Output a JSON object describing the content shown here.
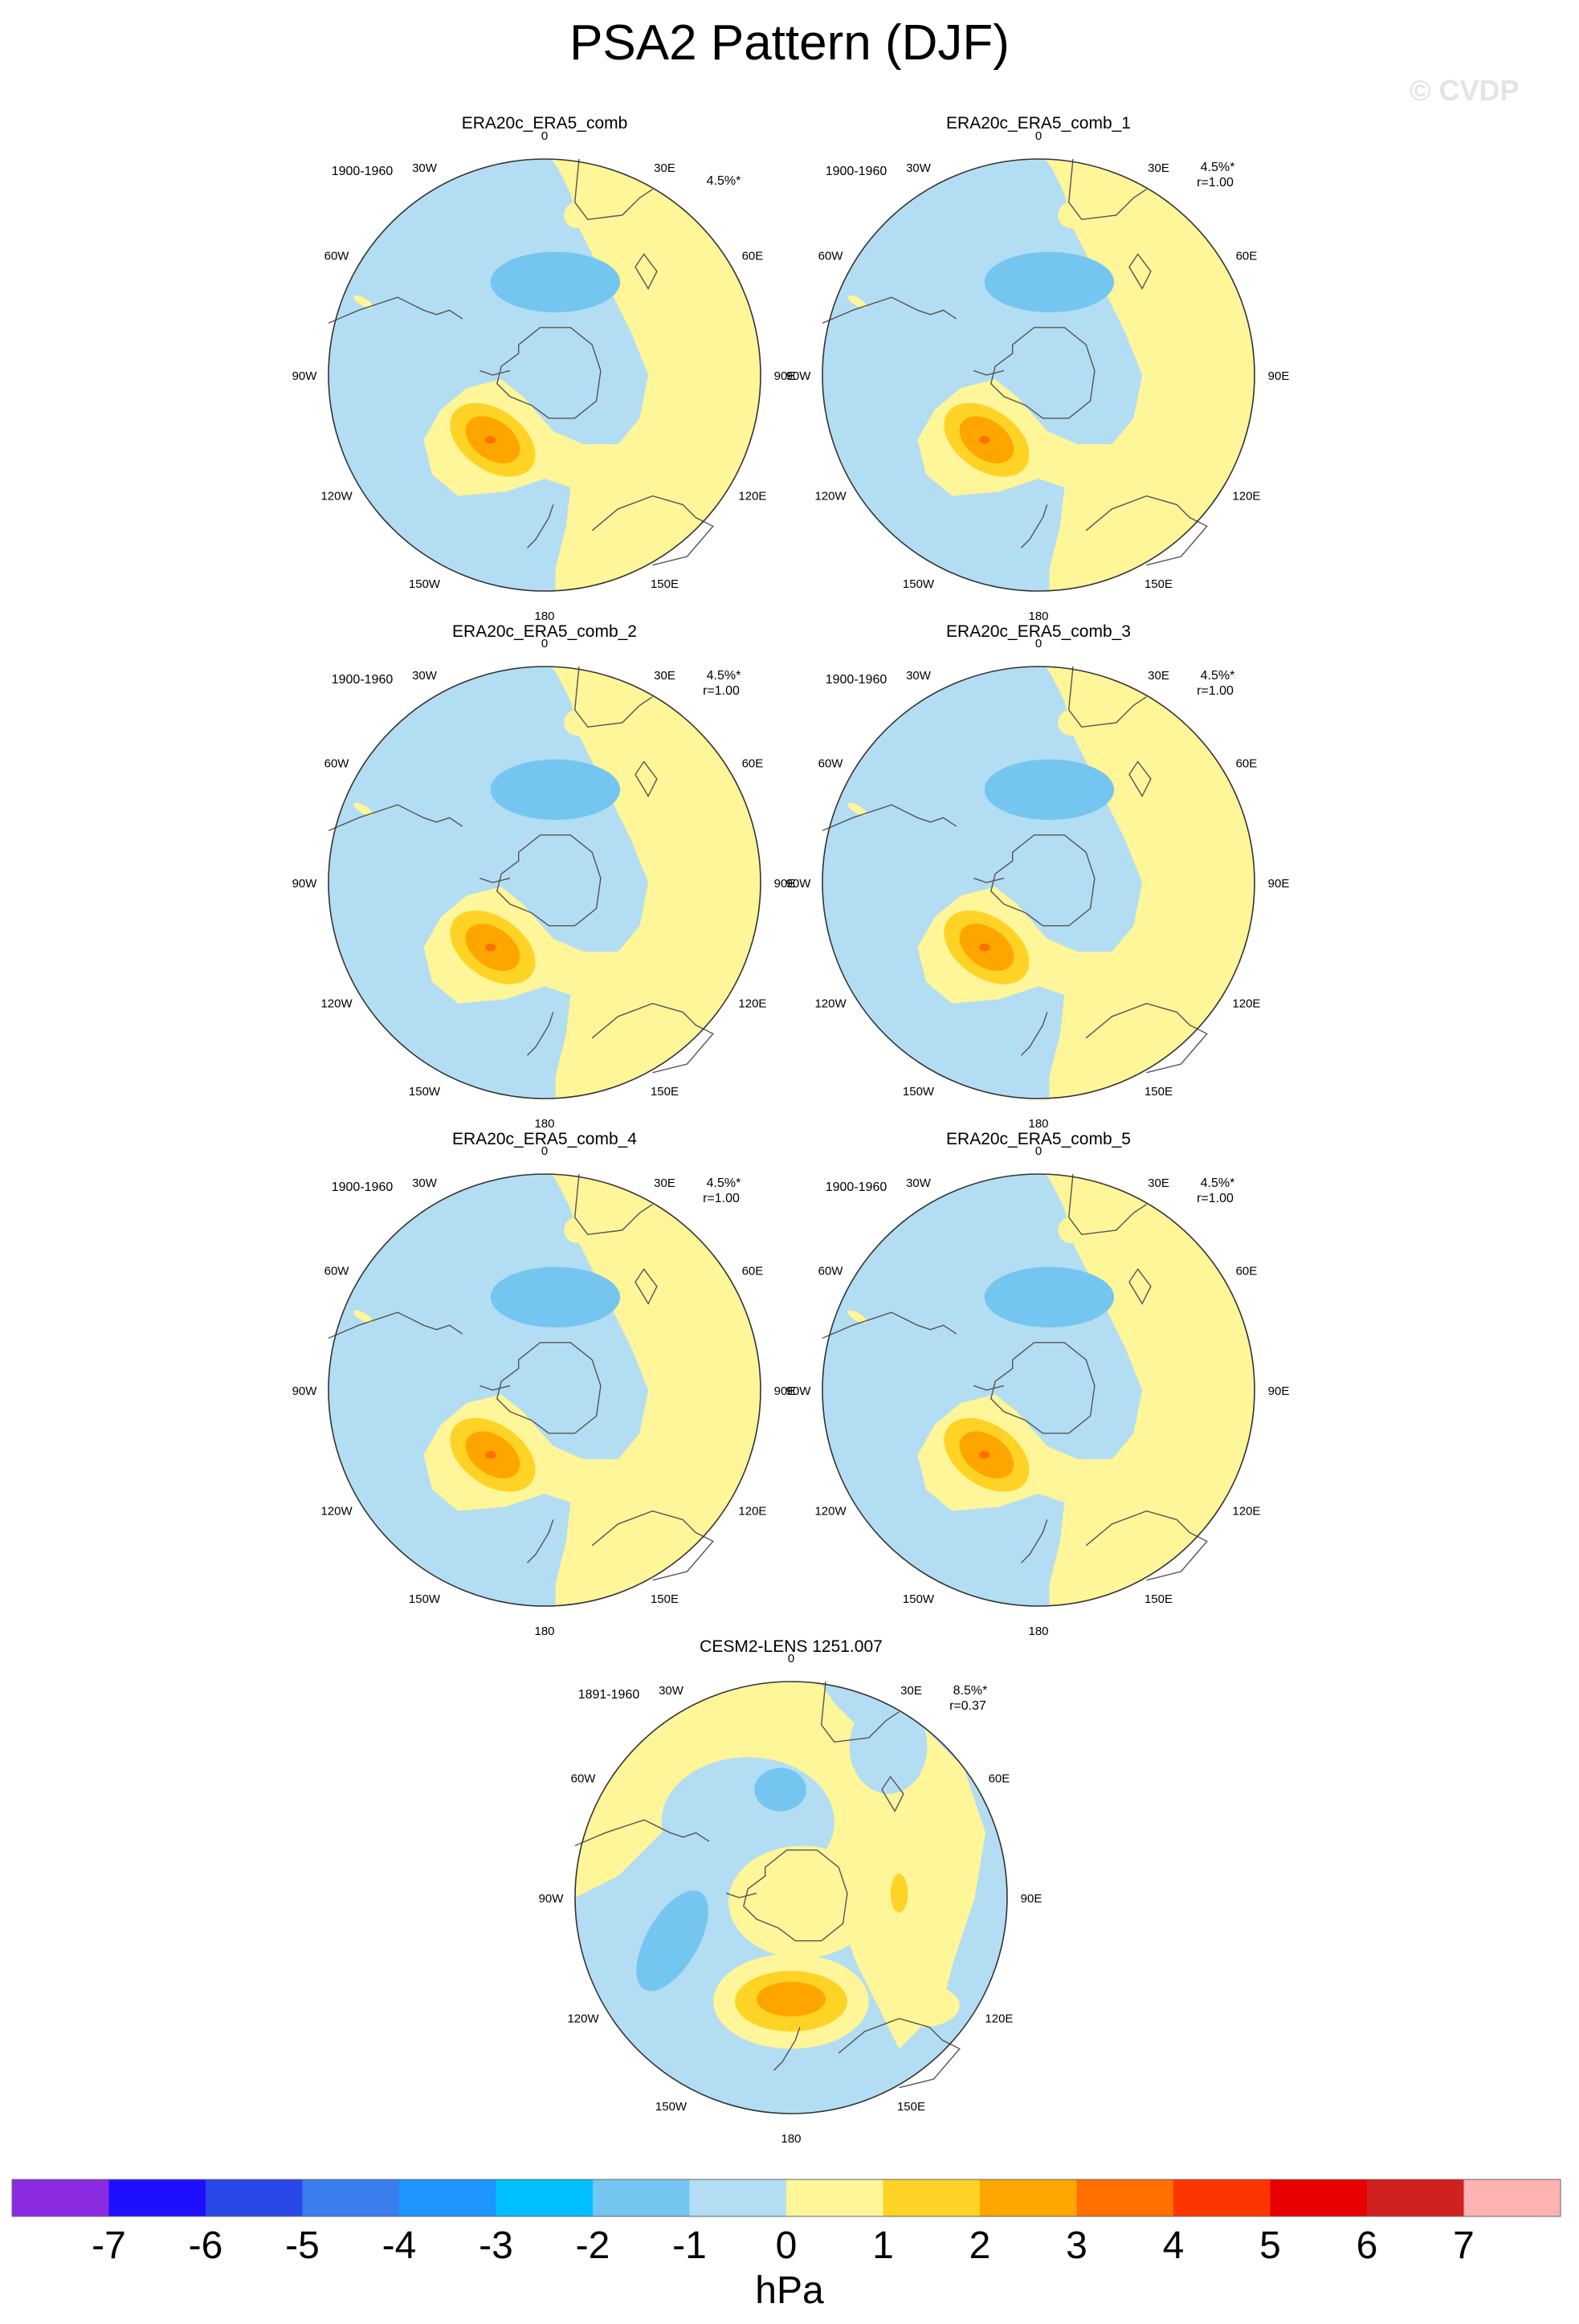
{
  "title": "PSA2 Pattern (DJF)",
  "watermark": "© CVDP",
  "panels": [
    {
      "title": "ERA20c_ERA5_comb",
      "period": "1900-1960",
      "stat_pct": "4.5%*",
      "stat_r": "",
      "variant": "obs"
    },
    {
      "title": "ERA20c_ERA5_comb_1",
      "period": "1900-1960",
      "stat_pct": "4.5%*",
      "stat_r": "r=1.00",
      "variant": "obs"
    },
    {
      "title": "ERA20c_ERA5_comb_2",
      "period": "1900-1960",
      "stat_pct": "4.5%*",
      "stat_r": "r=1.00",
      "variant": "obs"
    },
    {
      "title": "ERA20c_ERA5_comb_3",
      "period": "1900-1960",
      "stat_pct": "4.5%*",
      "stat_r": "r=1.00",
      "variant": "obs"
    },
    {
      "title": "ERA20c_ERA5_comb_4",
      "period": "1900-1960",
      "stat_pct": "4.5%*",
      "stat_r": "r=1.00",
      "variant": "obs"
    },
    {
      "title": "ERA20c_ERA5_comb_5",
      "period": "1900-1960",
      "stat_pct": "4.5%*",
      "stat_r": "r=1.00",
      "variant": "obs"
    },
    {
      "title": "CESM2-LENS 1251.007",
      "period": "1891-1960",
      "stat_pct": "8.5%*",
      "stat_r": "r=0.37",
      "variant": "model"
    }
  ],
  "longitude_labels": [
    "0",
    "30E",
    "60E",
    "90E",
    "120E",
    "150E",
    "180",
    "150W",
    "120W",
    "90W",
    "60W",
    "30W"
  ],
  "colorbar": {
    "unit": "hPa",
    "tick_labels": [
      "-7",
      "-6",
      "-5",
      "-4",
      "-3",
      "-2",
      "-1",
      "0",
      "1",
      "2",
      "3",
      "4",
      "5",
      "6",
      "7"
    ],
    "colors": [
      "#8a2be2",
      "#1e10ff",
      "#2a48e8",
      "#3a7ded",
      "#1e96ff",
      "#00c0ff",
      "#74c6f0",
      "#b3ddf2",
      "#fff599",
      "#ffd326",
      "#ffa500",
      "#ff7000",
      "#ff3500",
      "#e80000",
      "#d12020",
      "#ffb2b2"
    ]
  },
  "map_colors": {
    "neg1": "#b3ddf2",
    "neg2": "#74c6f0",
    "pos1": "#fff599",
    "pos2": "#ffd326",
    "pos3": "#ffa500",
    "pos4": "#ff7000"
  }
}
